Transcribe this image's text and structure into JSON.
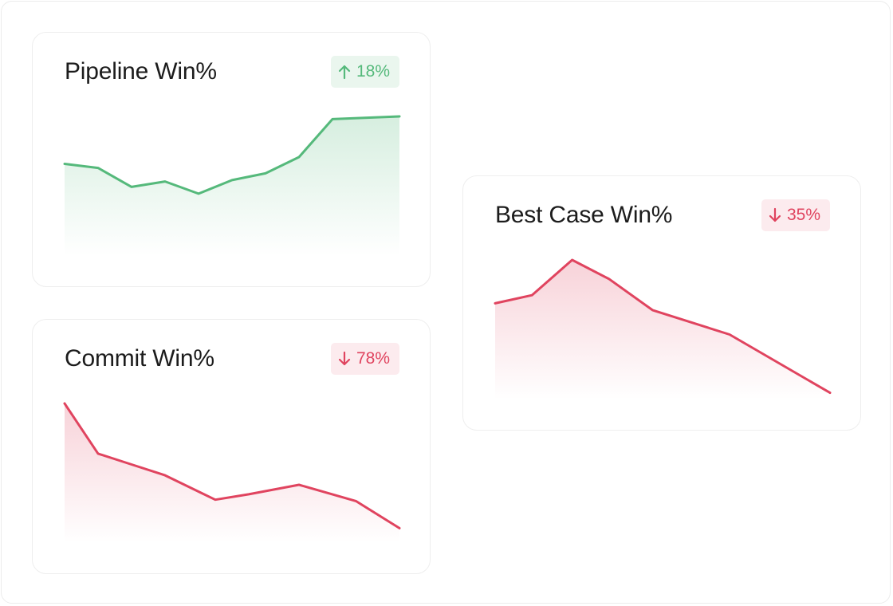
{
  "colors": {
    "up": "#55b97b",
    "down": "#e0445f",
    "up_fill": "#d5eedd",
    "down_fill": "#f9d3db"
  },
  "cards": {
    "pipeline": {
      "title": "Pipeline Win%",
      "delta": "18%",
      "direction": "up",
      "arrow_icon": "arrow-up-icon"
    },
    "commit": {
      "title": "Commit Win%",
      "delta": "78%",
      "direction": "down",
      "arrow_icon": "arrow-down-icon"
    },
    "bestcase": {
      "title": "Best Case Win%",
      "delta": "35%",
      "direction": "down",
      "arrow_icon": "arrow-down-icon"
    }
  },
  "chart_data": [
    {
      "type": "area",
      "title": "Pipeline Win%",
      "x": [
        0,
        10,
        20,
        30,
        40,
        50,
        60,
        70,
        80,
        100
      ],
      "values": [
        65,
        62,
        48,
        52,
        43,
        53,
        58,
        70,
        98,
        100
      ],
      "ylim": [
        0,
        100
      ],
      "grid": false,
      "color": "#55b97b"
    },
    {
      "type": "area",
      "title": "Commit Win%",
      "x": [
        0,
        10,
        20,
        30,
        45,
        55,
        70,
        87,
        100
      ],
      "values": [
        100,
        63,
        55,
        47,
        29,
        33,
        40,
        28,
        8
      ],
      "ylim": [
        0,
        100
      ],
      "grid": false,
      "color": "#e0445f"
    },
    {
      "type": "area",
      "title": "Best Case Win%",
      "x": [
        0,
        11,
        23,
        34,
        47,
        70,
        100
      ],
      "values": [
        68,
        74,
        100,
        86,
        63,
        45,
        2
      ],
      "ylim": [
        0,
        100
      ],
      "grid": false,
      "color": "#e0445f"
    }
  ]
}
